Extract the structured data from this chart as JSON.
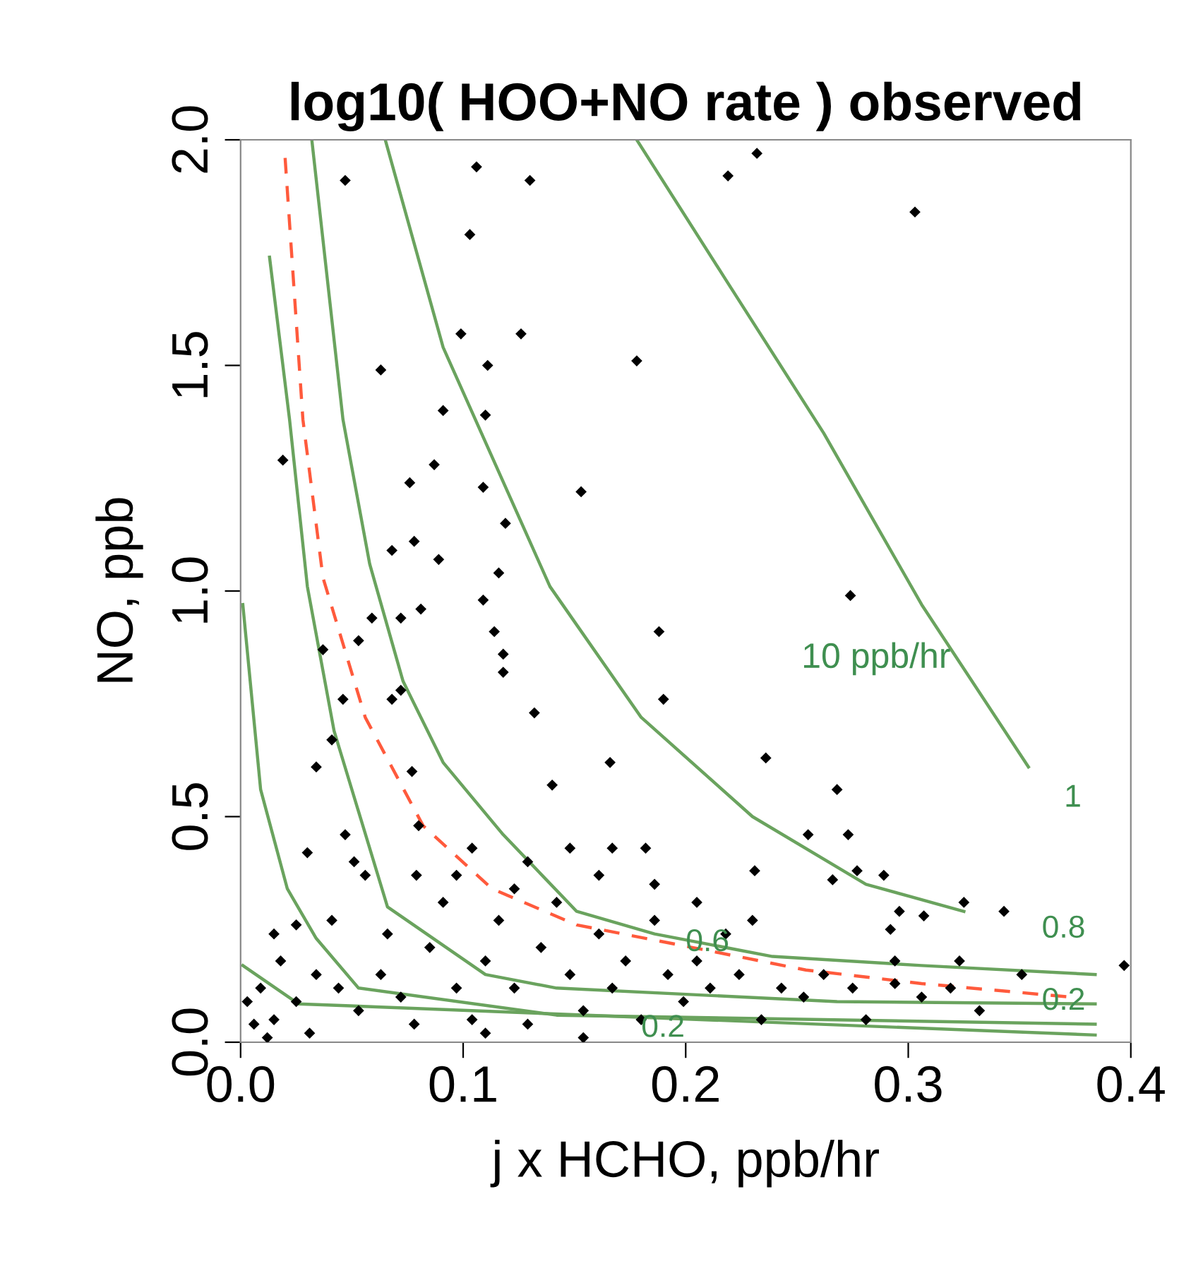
{
  "chart_data": {
    "type": "scatter",
    "title": "log10( HOO+NO rate ) observed",
    "xlabel": "j x HCHO, ppb/hr",
    "ylabel": "NO, ppb",
    "xlim": [
      0,
      0.4
    ],
    "ylim": [
      0,
      2.0
    ],
    "xticks": [
      {
        "value": 0,
        "label": "0.0"
      },
      0.1,
      0.2,
      0.3,
      0.4
    ],
    "yticks": [
      {
        "value": 0,
        "label": "0.0"
      },
      0.5,
      {
        "value": 1,
        "label": "1.0"
      },
      1.5,
      {
        "value": 2,
        "label": "2.0"
      }
    ],
    "grid": false,
    "legend": false,
    "series": [
      {
        "type": "line",
        "color": "#6aa35e",
        "line_style": "solid",
        "marker": "none",
        "x": [
          0.178,
          0.218,
          0.262,
          0.306,
          0.354
        ],
        "values": [
          2.0,
          1.69,
          1.35,
          0.97,
          0.61
        ]
      },
      {
        "type": "line",
        "color": "#6aa35e",
        "line_style": "solid",
        "marker": "none",
        "x": [
          0.065,
          0.091,
          0.139,
          0.18,
          0.23,
          0.281,
          0.325
        ],
        "values": [
          2.0,
          1.54,
          1.01,
          0.72,
          0.5,
          0.35,
          0.29
        ]
      },
      {
        "type": "line",
        "color": "#6aa35e",
        "line_style": "solid",
        "marker": "none",
        "x": [
          0.032,
          0.046,
          0.058,
          0.073,
          0.091,
          0.118,
          0.151,
          0.186,
          0.239,
          0.306,
          0.384
        ],
        "values": [
          2.0,
          1.38,
          1.06,
          0.8,
          0.62,
          0.46,
          0.29,
          0.24,
          0.19,
          0.17,
          0.15
        ]
      },
      {
        "type": "line",
        "color": "#ff5a3c",
        "line_style": "dashed",
        "marker": "none",
        "x": [
          0.02,
          0.028,
          0.037,
          0.056,
          0.082,
          0.113,
          0.151,
          0.203,
          0.254,
          0.306,
          0.373
        ],
        "values": [
          1.96,
          1.38,
          1.03,
          0.72,
          0.48,
          0.34,
          0.26,
          0.21,
          0.16,
          0.13,
          0.1
        ]
      },
      {
        "type": "line",
        "color": "#6aa35e",
        "line_style": "solid",
        "marker": "none",
        "x": [
          0.013,
          0.022,
          0.03,
          0.042,
          0.066,
          0.11,
          0.142,
          0.268,
          0.384
        ],
        "values": [
          1.74,
          1.38,
          1.01,
          0.69,
          0.3,
          0.15,
          0.12,
          0.09,
          0.085
        ]
      },
      {
        "type": "line",
        "color": "#6aa35e",
        "line_style": "solid",
        "marker": "none",
        "x": [
          0.001,
          0.009,
          0.021,
          0.034,
          0.053,
          0.142,
          0.384
        ],
        "values": [
          0.97,
          0.56,
          0.34,
          0.23,
          0.12,
          0.06,
          0.04
        ]
      },
      {
        "type": "line",
        "color": "#6aa35e",
        "line_style": "solid",
        "marker": "none",
        "x": [
          0.001,
          0.026,
          0.384
        ],
        "values": [
          0.17,
          0.085,
          0.016
        ]
      },
      {
        "color": "#000000",
        "marker": "diamond",
        "x": [
          0.047,
          0.106,
          0.13,
          0.103,
          0.099,
          0.126,
          0.111,
          0.063,
          0.091,
          0.11,
          0.109,
          0.119,
          0.116,
          0.087,
          0.178,
          0.153,
          0.232,
          0.219,
          0.303,
          0.274,
          0.236,
          0.231,
          0.188,
          0.19,
          0.14,
          0.081,
          0.072,
          0.068,
          0.132,
          0.046,
          0.034,
          0.019,
          0.041,
          0.072,
          0.077,
          0.047,
          0.056,
          0.051,
          0.079,
          0.08,
          0.025,
          0.078,
          0.076,
          0.089,
          0.068,
          0.03,
          0.118,
          0.118,
          0.114,
          0.109,
          0.037,
          0.053,
          0.059,
          0.166,
          0.167,
          0.182,
          0.268,
          0.273,
          0.255,
          0.277,
          0.266,
          0.292,
          0.289,
          0.296,
          0.325,
          0.343,
          0.351,
          0.323,
          0.294,
          0.307,
          0.009,
          0.015,
          0.006,
          0.025,
          0.034,
          0.018,
          0.044,
          0.053,
          0.063,
          0.072,
          0.078,
          0.085,
          0.091,
          0.097,
          0.104,
          0.11,
          0.116,
          0.123,
          0.129,
          0.135,
          0.142,
          0.148,
          0.154,
          0.161,
          0.167,
          0.173,
          0.18,
          0.186,
          0.192,
          0.199,
          0.205,
          0.211,
          0.218,
          0.224,
          0.234,
          0.243,
          0.253,
          0.262,
          0.275,
          0.281,
          0.294,
          0.306,
          0.319,
          0.332,
          0.186,
          0.161,
          0.129,
          0.104,
          0.148,
          0.205,
          0.23,
          0.015,
          0.041,
          0.066,
          0.097,
          0.123,
          0.003,
          0.012,
          0.031,
          0.11,
          0.154,
          0.397
        ],
        "values": [
          1.91,
          1.94,
          1.91,
          1.79,
          1.57,
          1.57,
          1.5,
          1.49,
          1.4,
          1.39,
          1.23,
          1.15,
          1.04,
          1.28,
          1.51,
          1.22,
          1.97,
          1.92,
          1.84,
          0.99,
          0.63,
          0.38,
          0.91,
          0.76,
          0.57,
          0.96,
          0.94,
          0.76,
          0.73,
          0.76,
          0.61,
          1.29,
          0.67,
          0.78,
          0.6,
          0.46,
          0.37,
          0.4,
          0.37,
          0.48,
          0.26,
          1.11,
          1.24,
          1.07,
          1.09,
          0.42,
          0.82,
          0.86,
          0.91,
          0.98,
          0.87,
          0.89,
          0.94,
          0.62,
          0.43,
          0.43,
          0.56,
          0.46,
          0.46,
          0.38,
          0.36,
          0.25,
          0.37,
          0.29,
          0.31,
          0.29,
          0.15,
          0.18,
          0.18,
          0.28,
          0.12,
          0.05,
          0.04,
          0.09,
          0.15,
          0.18,
          0.12,
          0.07,
          0.15,
          0.1,
          0.04,
          0.21,
          0.31,
          0.12,
          0.05,
          0.18,
          0.27,
          0.12,
          0.04,
          0.21,
          0.31,
          0.15,
          0.07,
          0.24,
          0.12,
          0.18,
          0.05,
          0.27,
          0.15,
          0.09,
          0.18,
          0.12,
          0.24,
          0.15,
          0.05,
          0.12,
          0.1,
          0.15,
          0.12,
          0.05,
          0.13,
          0.1,
          0.12,
          0.07,
          0.35,
          0.37,
          0.4,
          0.43,
          0.43,
          0.31,
          0.27,
          0.24,
          0.27,
          0.24,
          0.37,
          0.34,
          0.09,
          0.01,
          0.02,
          0.02,
          0.01,
          0.17
        ]
      }
    ],
    "annotations": [
      "10 ppb/hr",
      "1",
      "0.8",
      "0.6",
      "0.2",
      "0.2"
    ]
  }
}
